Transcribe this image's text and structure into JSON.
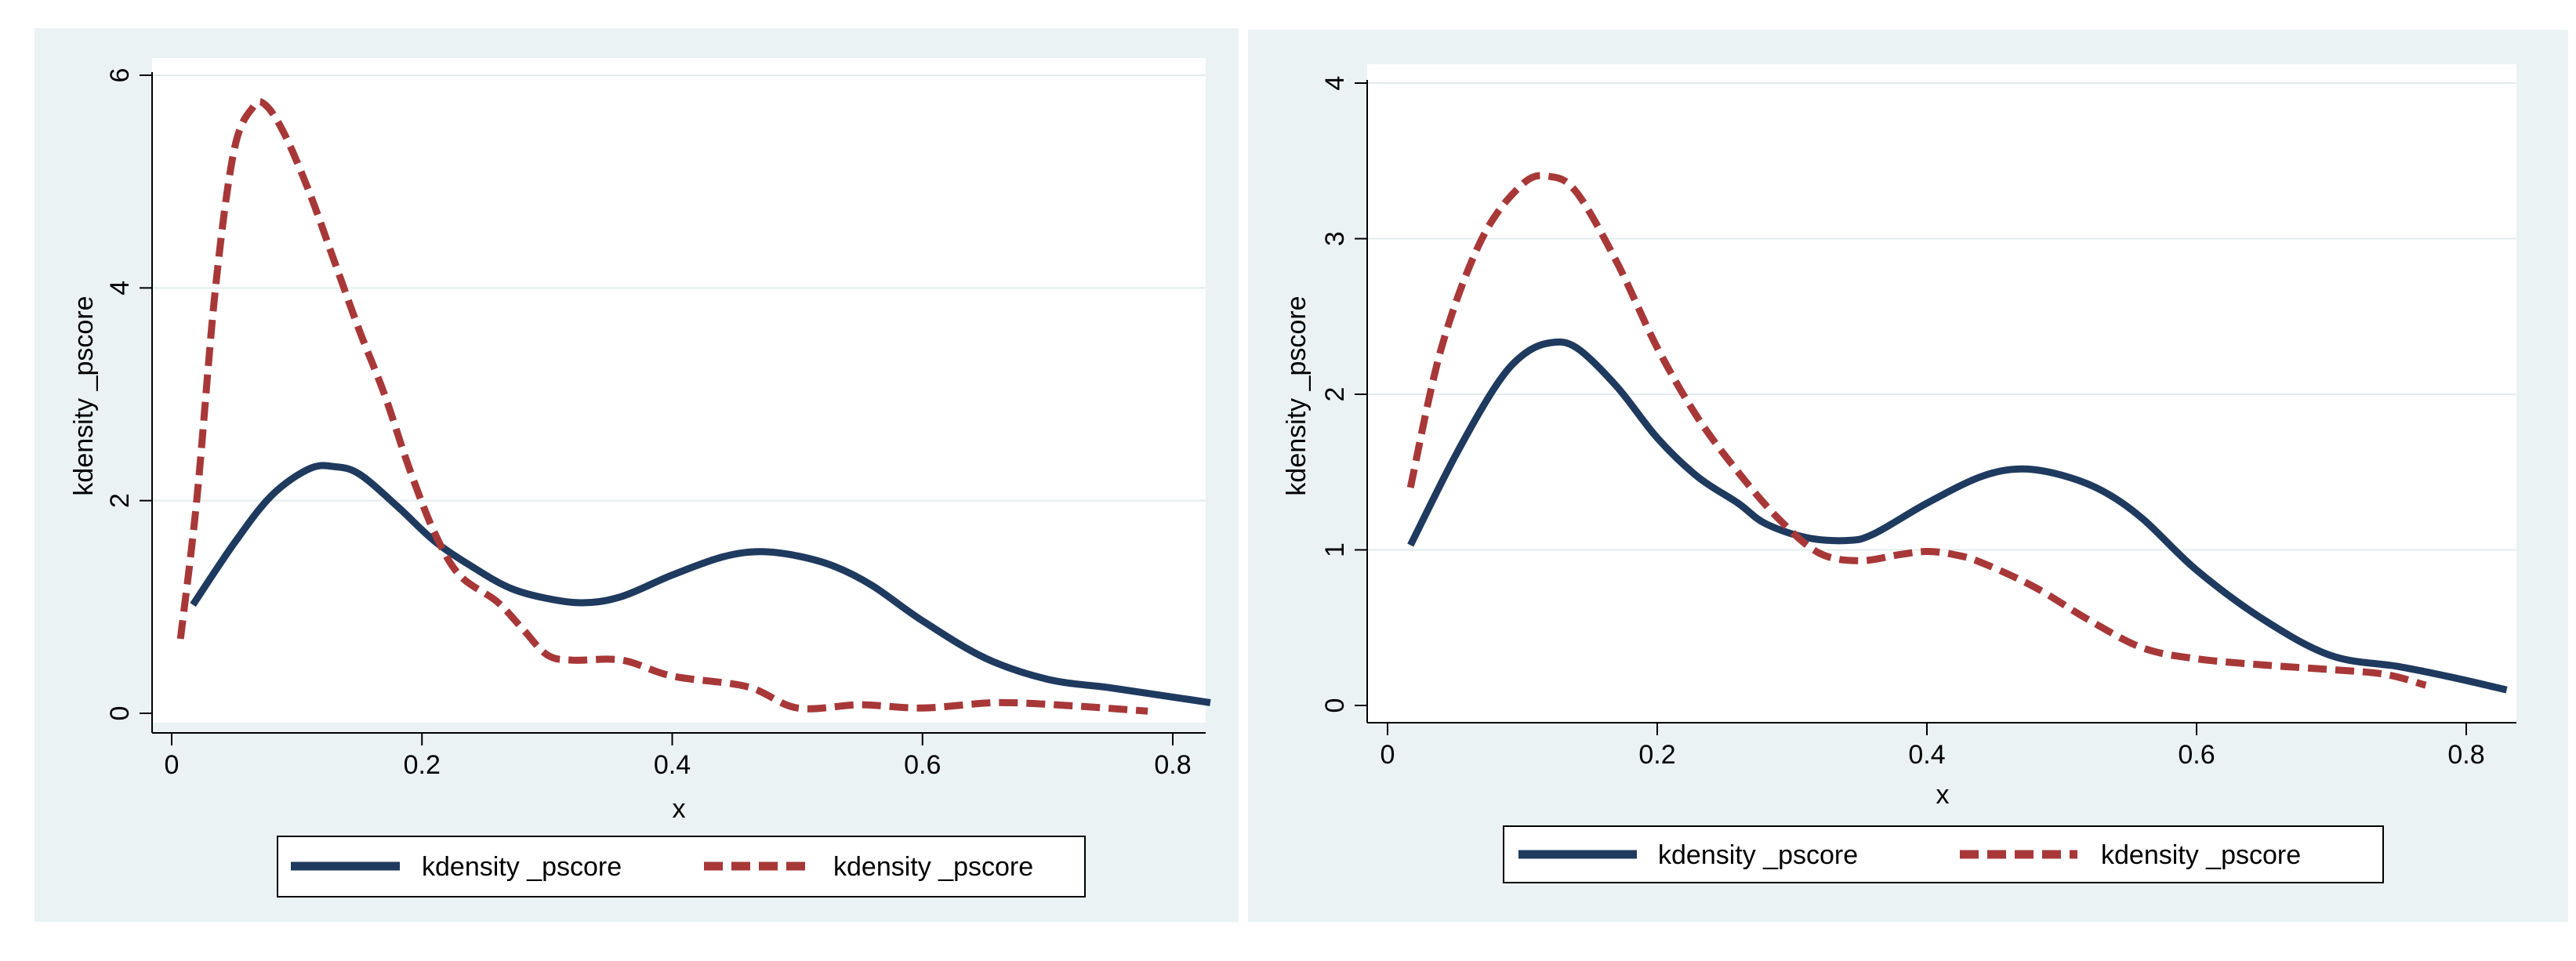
{
  "chart_data": [
    {
      "type": "line",
      "panel": "left",
      "xlabel": "x",
      "ylabel": "kdensity _pscore",
      "xlim": [
        0,
        0.83
      ],
      "ylim": [
        0,
        6.0
      ],
      "xticks": [
        0,
        0.2,
        0.4,
        0.6,
        0.8
      ],
      "xtick_labels": [
        "0",
        "0.2",
        "0.4",
        "0.6",
        "0.8"
      ],
      "yticks": [
        0,
        2,
        4,
        6
      ],
      "ytick_labels": [
        "0",
        "2",
        "4",
        "6"
      ],
      "grid": true,
      "legend_position": "bottom",
      "series": [
        {
          "name": "kdensity _pscore",
          "style": "solid",
          "color": "#1f3a5f",
          "x": [
            0.017,
            0.05,
            0.08,
            0.11,
            0.13,
            0.15,
            0.18,
            0.21,
            0.24,
            0.27,
            0.3,
            0.33,
            0.36,
            0.4,
            0.44,
            0.47,
            0.5,
            0.53,
            0.56,
            0.6,
            0.65,
            0.7,
            0.75,
            0.79,
            0.83
          ],
          "y": [
            1.02,
            1.6,
            2.05,
            2.3,
            2.32,
            2.25,
            1.95,
            1.62,
            1.38,
            1.18,
            1.08,
            1.04,
            1.1,
            1.3,
            1.47,
            1.52,
            1.48,
            1.38,
            1.2,
            0.87,
            0.52,
            0.32,
            0.24,
            0.17,
            0.1
          ]
        },
        {
          "name": "kdensity _pscore",
          "style": "dashed",
          "color": "#a83838",
          "x": [
            0.007,
            0.02,
            0.035,
            0.05,
            0.065,
            0.075,
            0.09,
            0.11,
            0.13,
            0.15,
            0.17,
            0.19,
            0.21,
            0.23,
            0.26,
            0.28,
            0.3,
            0.32,
            0.36,
            0.4,
            0.46,
            0.5,
            0.55,
            0.6,
            0.66,
            0.72,
            0.78
          ],
          "y": [
            0.7,
            2.0,
            4.0,
            5.3,
            5.7,
            5.72,
            5.45,
            4.9,
            4.25,
            3.6,
            3.0,
            2.3,
            1.7,
            1.3,
            1.05,
            0.8,
            0.55,
            0.5,
            0.5,
            0.35,
            0.25,
            0.05,
            0.08,
            0.05,
            0.1,
            0.07,
            0.02
          ]
        }
      ]
    },
    {
      "type": "line",
      "panel": "right",
      "xlabel": "x",
      "ylabel": "kdensity _pscore",
      "xlim": [
        0,
        0.84
      ],
      "ylim": [
        0,
        4.0
      ],
      "xticks": [
        0,
        0.2,
        0.4,
        0.6,
        0.8
      ],
      "xtick_labels": [
        "0",
        "0.2",
        "0.4",
        "0.6",
        "0.8"
      ],
      "yticks": [
        0,
        1,
        2,
        3,
        4
      ],
      "ytick_labels": [
        "0",
        "1",
        "2",
        "3",
        "4"
      ],
      "grid": true,
      "legend_position": "bottom",
      "series": [
        {
          "name": "kdensity _pscore",
          "style": "solid",
          "color": "#1f3a5f",
          "x": [
            0.017,
            0.05,
            0.08,
            0.1,
            0.12,
            0.14,
            0.17,
            0.2,
            0.23,
            0.26,
            0.28,
            0.31,
            0.34,
            0.36,
            0.4,
            0.44,
            0.47,
            0.5,
            0.53,
            0.56,
            0.6,
            0.65,
            0.7,
            0.75,
            0.79,
            0.83
          ],
          "y": [
            1.03,
            1.6,
            2.05,
            2.25,
            2.33,
            2.3,
            2.05,
            1.72,
            1.47,
            1.3,
            1.17,
            1.08,
            1.06,
            1.1,
            1.3,
            1.47,
            1.52,
            1.48,
            1.38,
            1.2,
            0.87,
            0.55,
            0.32,
            0.25,
            0.18,
            0.1
          ]
        },
        {
          "name": "kdensity _pscore",
          "style": "dashed",
          "color": "#a83838",
          "x": [
            0.017,
            0.04,
            0.07,
            0.1,
            0.12,
            0.14,
            0.17,
            0.2,
            0.23,
            0.26,
            0.29,
            0.32,
            0.35,
            0.38,
            0.4,
            0.42,
            0.44,
            0.48,
            0.52,
            0.56,
            0.6,
            0.65,
            0.7,
            0.74,
            0.77
          ],
          "y": [
            1.4,
            2.3,
            3.0,
            3.35,
            3.4,
            3.3,
            2.85,
            2.3,
            1.85,
            1.5,
            1.2,
            0.98,
            0.93,
            0.97,
            0.99,
            0.97,
            0.92,
            0.76,
            0.55,
            0.37,
            0.3,
            0.26,
            0.23,
            0.2,
            0.13
          ]
        }
      ]
    }
  ]
}
